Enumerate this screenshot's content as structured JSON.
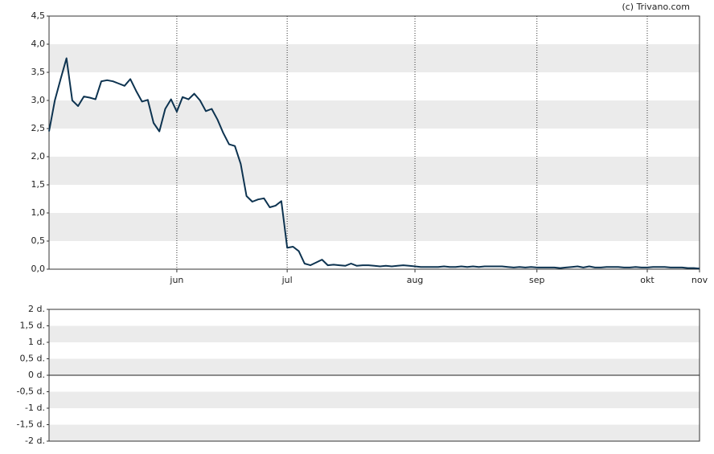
{
  "chart_data": [
    {
      "type": "line",
      "credit": "(c) Trivano.com",
      "x": [
        0,
        1,
        2,
        3,
        4,
        5,
        6,
        7,
        8,
        9,
        10,
        11,
        12,
        13,
        14,
        15,
        16,
        17,
        18,
        19,
        20,
        21,
        22,
        23,
        24,
        25,
        26,
        27,
        28,
        29,
        30,
        31,
        32,
        33,
        34,
        35,
        36,
        37,
        38,
        39,
        40,
        41,
        42,
        43,
        44,
        45,
        46,
        47,
        48,
        49,
        50,
        51,
        52,
        53,
        54,
        55,
        56,
        57,
        58,
        59,
        60,
        61,
        62,
        63,
        64,
        65,
        66,
        67,
        68,
        69,
        70,
        71,
        72,
        73,
        74,
        75,
        76,
        77,
        78,
        79,
        80,
        81,
        82,
        83,
        84,
        85,
        86,
        87,
        88,
        89,
        90,
        91,
        92,
        93,
        94,
        95,
        96,
        97,
        98,
        99,
        100,
        101,
        102,
        103,
        104,
        105,
        106,
        107,
        108,
        109,
        110,
        111,
        112
      ],
      "series": [
        {
          "color": "#0d3350",
          "values": [
            2.45,
            3.0,
            3.38,
            3.75,
            3.0,
            2.9,
            3.07,
            3.05,
            3.02,
            3.34,
            3.36,
            3.34,
            3.3,
            3.26,
            3.38,
            3.17,
            2.98,
            3.01,
            2.6,
            2.45,
            2.85,
            3.02,
            2.8,
            3.06,
            3.02,
            3.12,
            3.0,
            2.81,
            2.85,
            2.66,
            2.42,
            2.22,
            2.19,
            1.87,
            1.3,
            1.2,
            1.24,
            1.26,
            1.1,
            1.13,
            1.21,
            0.38,
            0.4,
            0.32,
            0.1,
            0.07,
            0.12,
            0.17,
            0.07,
            0.08,
            0.07,
            0.06,
            0.1,
            0.06,
            0.07,
            0.07,
            0.06,
            0.05,
            0.06,
            0.05,
            0.06,
            0.07,
            0.06,
            0.05,
            0.04,
            0.04,
            0.04,
            0.04,
            0.05,
            0.04,
            0.04,
            0.05,
            0.04,
            0.05,
            0.04,
            0.05,
            0.05,
            0.05,
            0.05,
            0.04,
            0.03,
            0.04,
            0.03,
            0.04,
            0.03,
            0.03,
            0.03,
            0.03,
            0.02,
            0.03,
            0.04,
            0.05,
            0.03,
            0.05,
            0.03,
            0.03,
            0.04,
            0.04,
            0.04,
            0.03,
            0.03,
            0.04,
            0.03,
            0.03,
            0.04,
            0.04,
            0.04,
            0.03,
            0.03,
            0.03,
            0.02,
            0.02,
            0.01
          ]
        }
      ],
      "xlim": [
        0,
        112
      ],
      "xticks": [
        {
          "value": 22,
          "label": "jun"
        },
        {
          "value": 41,
          "label": "jul"
        },
        {
          "value": 63,
          "label": "aug"
        },
        {
          "value": 84,
          "label": "sep"
        },
        {
          "value": 103,
          "label": "okt"
        },
        {
          "value": 112,
          "label": "nov"
        }
      ],
      "ylim": [
        0,
        4.5
      ],
      "yticks": [
        {
          "value": 0,
          "label": "0,0"
        },
        {
          "value": 0.5,
          "label": "0,5"
        },
        {
          "value": 1,
          "label": "1,0"
        },
        {
          "value": 1.5,
          "label": "1,5"
        },
        {
          "value": 2,
          "label": "2,0"
        },
        {
          "value": 2.5,
          "label": "2,5"
        },
        {
          "value": 3,
          "label": "3,0"
        },
        {
          "value": 3.5,
          "label": "3,5"
        },
        {
          "value": 4,
          "label": "4,0"
        },
        {
          "value": 4.5,
          "label": "4,5"
        }
      ],
      "grid": "bands"
    },
    {
      "type": "line",
      "ylim": [
        -2,
        2
      ],
      "yticks": [
        {
          "value": -2,
          "label": "-2 d."
        },
        {
          "value": -1.5,
          "label": "-1,5 d."
        },
        {
          "value": -1,
          "label": "-1 d."
        },
        {
          "value": -0.5,
          "label": "-0,5 d."
        },
        {
          "value": 0,
          "label": "0 d."
        },
        {
          "value": 0.5,
          "label": "0,5 d."
        },
        {
          "value": 1,
          "label": "1 d."
        },
        {
          "value": 1.5,
          "label": "1,5 d."
        },
        {
          "value": 2,
          "label": "2 d."
        }
      ],
      "grid": "bands"
    }
  ]
}
